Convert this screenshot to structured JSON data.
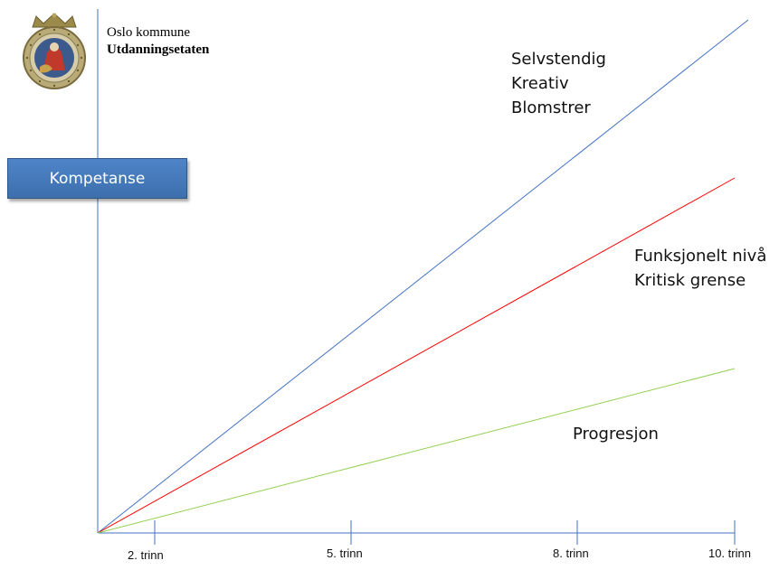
{
  "header": {
    "org": "Oslo kommune",
    "dept": "Utdanningsetaten"
  },
  "y_axis_box": "Kompetanse",
  "lines": [
    {
      "color": "#4472c4",
      "labels": [
        "Selvstendig",
        "Kreativ",
        "Blomstrer"
      ]
    },
    {
      "color": "#ff0000",
      "labels": [
        "Funksjonelt nivå",
        "Kritisk grense"
      ]
    },
    {
      "color": "#92d050",
      "labels": [
        "Progresjon"
      ]
    }
  ],
  "x_ticks": [
    "2. trinn",
    "5. trinn",
    "8. trinn",
    "10. trinn"
  ],
  "axis_color": "#4472c4"
}
